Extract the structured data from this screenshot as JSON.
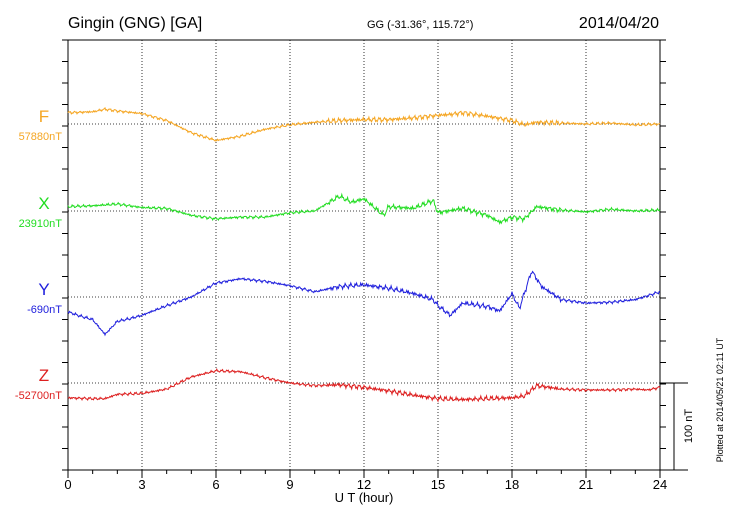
{
  "header": {
    "station": "Gingin (GNG)  [GA]",
    "coords": "GG (-31.36°, 115.72°)",
    "date": "2014/04/20"
  },
  "footer": {
    "plotted": "Plotted at 2014/05/21 02:11 UT"
  },
  "scale": {
    "label": "100 nT",
    "nT": 100
  },
  "chart_data": {
    "type": "line",
    "xlabel": "U T (hour)",
    "xlim": [
      0,
      24
    ],
    "xticks": [
      "0",
      "3",
      "6",
      "9",
      "12",
      "15",
      "18",
      "21",
      "24"
    ],
    "grid": true,
    "series": [
      {
        "name": "F",
        "baseline_label": "57880nT",
        "color": "#f5a623",
        "x": [
          0,
          1,
          1.5,
          2,
          3,
          4,
          5,
          6,
          7,
          8,
          9,
          10,
          11,
          12,
          13,
          14,
          15,
          15.5,
          16,
          17,
          18,
          18.5,
          19,
          20,
          21,
          22,
          23,
          24
        ],
        "y": [
          57893,
          57894,
          57897,
          57895,
          57892,
          57884,
          57870,
          57861,
          57866,
          57874,
          57879,
          57882,
          57884,
          57885,
          57885,
          57887,
          57890,
          57891,
          57893,
          57889,
          57884,
          57879,
          57882,
          57881,
          57880,
          57881,
          57879,
          57880
        ]
      },
      {
        "name": "X",
        "baseline_label": "23910nT",
        "color": "#22dd22",
        "x": [
          0,
          1,
          2,
          3,
          4,
          5,
          6,
          7,
          8,
          9,
          10,
          11,
          11.5,
          12,
          12.8,
          13,
          14,
          14.8,
          15,
          16,
          17,
          17.5,
          18,
          18.5,
          19,
          20,
          21,
          22,
          23,
          24
        ],
        "y": [
          23915,
          23916,
          23918,
          23914,
          23913,
          23905,
          23901,
          23903,
          23903,
          23908,
          23910,
          23927,
          23920,
          23924,
          23905,
          23915,
          23913,
          23922,
          23908,
          23913,
          23905,
          23897,
          23903,
          23901,
          23915,
          23911,
          23909,
          23912,
          23910,
          23911
        ]
      },
      {
        "name": "Y",
        "baseline_label": "-690nT",
        "color": "#2020dd",
        "x": [
          0,
          0.5,
          1,
          1.5,
          2,
          2.5,
          3,
          4,
          5,
          6,
          7,
          8,
          9,
          10,
          11,
          12,
          13,
          14,
          14.8,
          15,
          15.5,
          16,
          17,
          17.5,
          18,
          18.3,
          18.8,
          19.2,
          20,
          21,
          22,
          23,
          24
        ],
        "y": [
          -707,
          -712,
          -716,
          -733,
          -718,
          -715,
          -711,
          -700,
          -690,
          -674,
          -669,
          -672,
          -677,
          -684,
          -678,
          -676,
          -680,
          -686,
          -693,
          -700,
          -711,
          -697,
          -701,
          -706,
          -686,
          -703,
          -660,
          -678,
          -693,
          -697,
          -696,
          -693,
          -684
        ]
      },
      {
        "name": "Z",
        "baseline_label": "-52700nT",
        "color": "#dd2020",
        "x": [
          0,
          1,
          1.5,
          2,
          3,
          4,
          5,
          6,
          7,
          8,
          9,
          10,
          11,
          12,
          13,
          14,
          15,
          16,
          17,
          18,
          18.5,
          19,
          20,
          21,
          22,
          23,
          23.5,
          24
        ],
        "y": [
          -52717,
          -52718,
          -52718,
          -52713,
          -52712,
          -52707,
          -52693,
          -52686,
          -52687,
          -52694,
          -52700,
          -52703,
          -52702,
          -52705,
          -52709,
          -52714,
          -52718,
          -52719,
          -52718,
          -52717,
          -52715,
          -52703,
          -52707,
          -52708,
          -52708,
          -52707,
          -52708,
          -52705
        ]
      }
    ]
  }
}
